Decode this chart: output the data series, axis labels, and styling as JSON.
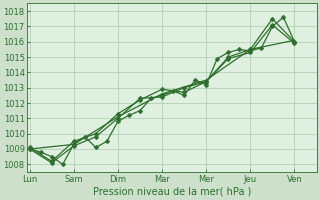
{
  "xlabel": "Pression niveau de la mer( hPa )",
  "background_color": "#cce0cc",
  "plot_background": "#e0f0e0",
  "grid_color": "#aaccaa",
  "line_color": "#2d6e2d",
  "ylim": [
    1007.5,
    1018.5
  ],
  "xlim": [
    -0.1,
    13.0
  ],
  "xtick_labels": [
    "Lun",
    "Sam",
    "Dim",
    "Mar",
    "Mer",
    "Jeu",
    "Ven"
  ],
  "xtick_positions": [
    0,
    2,
    4,
    6,
    8,
    10,
    12
  ],
  "series": [
    {
      "x": [
        0,
        0.5,
        1,
        1.5,
        2,
        2.5,
        3,
        3.5,
        4,
        4.5,
        5,
        5.5,
        6,
        6.5,
        7,
        7.5,
        8,
        8.5,
        9,
        9.5,
        10,
        10.5,
        11,
        11.5,
        12
      ],
      "y": [
        1009.0,
        1008.8,
        1008.5,
        1008.0,
        1009.3,
        1009.8,
        1009.1,
        1009.5,
        1010.8,
        1011.2,
        1011.5,
        1012.3,
        1012.5,
        1012.8,
        1012.5,
        1013.5,
        1013.2,
        1014.9,
        1015.3,
        1015.5,
        1015.4,
        1015.6,
        1017.0,
        1017.6,
        1016.0
      ],
      "marker": "D",
      "markersize": 2.5,
      "linewidth": 0.9
    },
    {
      "x": [
        0,
        1,
        2,
        3,
        4,
        5,
        6,
        7,
        8,
        9,
        10,
        11,
        12
      ],
      "y": [
        1009.0,
        1008.1,
        1009.2,
        1009.8,
        1011.0,
        1012.3,
        1012.4,
        1013.0,
        1013.4,
        1014.9,
        1015.3,
        1017.1,
        1015.9
      ],
      "marker": "D",
      "markersize": 2.5,
      "linewidth": 0.9
    },
    {
      "x": [
        0,
        1,
        2,
        3,
        4,
        5,
        6,
        7,
        8,
        9,
        10,
        11,
        12
      ],
      "y": [
        1009.1,
        1008.2,
        1009.5,
        1010.0,
        1011.3,
        1012.2,
        1012.9,
        1012.7,
        1013.4,
        1015.0,
        1015.5,
        1017.5,
        1016.0
      ],
      "marker": "D",
      "markersize": 2.5,
      "linewidth": 0.9
    },
    {
      "x": [
        0,
        2,
        4,
        6,
        8,
        10,
        12
      ],
      "y": [
        1009.0,
        1009.3,
        1011.1,
        1012.6,
        1013.5,
        1015.5,
        1016.1
      ],
      "marker": null,
      "markersize": 0,
      "linewidth": 0.9
    }
  ],
  "ytick_values": [
    1008,
    1009,
    1010,
    1011,
    1012,
    1013,
    1014,
    1015,
    1016,
    1017,
    1018
  ],
  "xlabel_fontsize": 7,
  "tick_fontsize": 6
}
